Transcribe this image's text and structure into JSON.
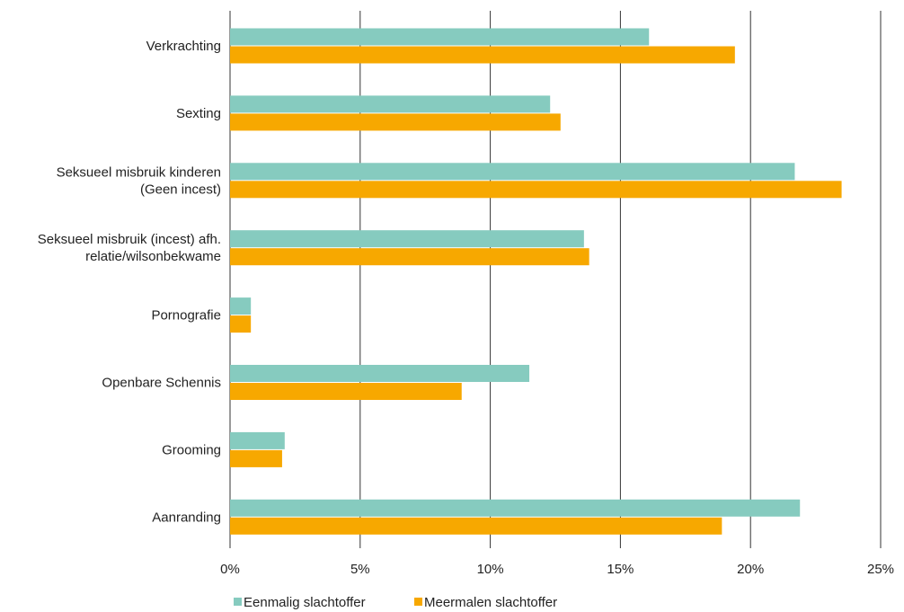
{
  "chart_data": {
    "type": "bar",
    "orientation": "horizontal",
    "categories": [
      [
        "Verkrachting"
      ],
      [
        "Sexting"
      ],
      [
        "Seksueel misbruik kinderen",
        "(Geen incest)"
      ],
      [
        "Seksueel misbruik (incest) afh.",
        "relatie/wilsonbekwame"
      ],
      [
        "Pornografie"
      ],
      [
        "Openbare Schennis"
      ],
      [
        "Grooming"
      ],
      [
        "Aanranding"
      ]
    ],
    "series": [
      {
        "name": "Eenmalig slachtoffer",
        "color": "#86cbbf",
        "values": [
          16.1,
          12.3,
          21.7,
          13.6,
          0.8,
          11.5,
          2.1,
          21.9
        ]
      },
      {
        "name": "Meermalen slachtoffer",
        "color": "#f7a800",
        "values": [
          19.4,
          12.7,
          23.5,
          13.8,
          0.8,
          8.9,
          2.0,
          18.9
        ]
      }
    ],
    "xlim": [
      0,
      25
    ],
    "xticks": [
      "0%",
      "5%",
      "10%",
      "15%",
      "20%",
      "25%"
    ],
    "xtick_values": [
      0,
      5,
      10,
      15,
      20,
      25
    ],
    "grid": "vertical",
    "legend": "bottom-center"
  }
}
